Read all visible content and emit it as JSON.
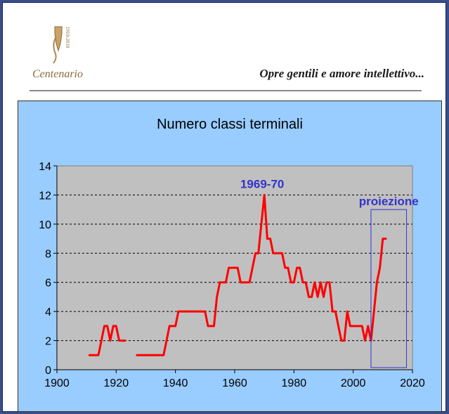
{
  "header": {
    "logo_text": "Centenario",
    "logo_small_text": "1910-2010",
    "motto": "Opre gentili e amore intellettivo..."
  },
  "colors": {
    "page_border": "#3b4f86",
    "chart_bg": "#99ccff",
    "plot_bg": "#c0c0c0",
    "line": "#ff0000",
    "annotation": "#3333cc"
  },
  "chart_data": {
    "type": "line",
    "title": "Numero classi terminali",
    "xlabel": "",
    "ylabel": "",
    "xlim": [
      1900,
      2020
    ],
    "ylim": [
      0,
      14
    ],
    "xticks": [
      1900,
      1920,
      1940,
      1960,
      1980,
      2000,
      2020
    ],
    "yticks": [
      0,
      2,
      4,
      6,
      8,
      10,
      12,
      14
    ],
    "grid": "horizontal dashed",
    "legend": "none",
    "series": [
      {
        "segments": [
          [
            [
              1911,
              1
            ],
            [
              1912,
              1
            ],
            [
              1913,
              1
            ],
            [
              1914,
              1
            ],
            [
              1915,
              2
            ],
            [
              1916,
              3
            ],
            [
              1917,
              3
            ],
            [
              1918,
              2
            ],
            [
              1919,
              3
            ],
            [
              1920,
              3
            ],
            [
              1921,
              2
            ],
            [
              1922,
              2
            ],
            [
              1923,
              2
            ]
          ],
          [
            [
              1927,
              1
            ],
            [
              1928,
              1
            ],
            [
              1930,
              1
            ],
            [
              1932,
              1
            ],
            [
              1934,
              1
            ],
            [
              1936,
              1
            ],
            [
              1937,
              2
            ],
            [
              1938,
              3
            ],
            [
              1939,
              3
            ],
            [
              1940,
              3
            ],
            [
              1941,
              4
            ],
            [
              1942,
              4
            ],
            [
              1944,
              4
            ],
            [
              1946,
              4
            ],
            [
              1948,
              4
            ],
            [
              1950,
              4
            ],
            [
              1951,
              3
            ],
            [
              1952,
              3
            ],
            [
              1953,
              3
            ],
            [
              1954,
              5
            ],
            [
              1955,
              6
            ],
            [
              1956,
              6
            ],
            [
              1957,
              6
            ],
            [
              1958,
              7
            ],
            [
              1959,
              7
            ],
            [
              1960,
              7
            ],
            [
              1961,
              7
            ],
            [
              1962,
              6
            ],
            [
              1963,
              6
            ],
            [
              1964,
              6
            ],
            [
              1965,
              6
            ],
            [
              1966,
              7
            ],
            [
              1967,
              8
            ],
            [
              1968,
              8
            ],
            [
              1969,
              10
            ],
            [
              1970,
              12
            ],
            [
              1971,
              9
            ],
            [
              1972,
              9
            ],
            [
              1973,
              8
            ],
            [
              1974,
              8
            ],
            [
              1975,
              8
            ],
            [
              1976,
              8
            ],
            [
              1977,
              7
            ],
            [
              1978,
              7
            ],
            [
              1979,
              6
            ],
            [
              1980,
              6
            ],
            [
              1981,
              7
            ],
            [
              1982,
              7
            ],
            [
              1983,
              6
            ],
            [
              1984,
              6
            ],
            [
              1985,
              5
            ],
            [
              1986,
              5
            ],
            [
              1987,
              6
            ],
            [
              1988,
              5
            ],
            [
              1989,
              6
            ],
            [
              1990,
              5
            ],
            [
              1991,
              6
            ],
            [
              1992,
              6
            ],
            [
              1993,
              4
            ],
            [
              1994,
              4
            ],
            [
              1995,
              3
            ],
            [
              1996,
              2
            ],
            [
              1997,
              2
            ],
            [
              1998,
              4
            ],
            [
              1999,
              3
            ],
            [
              2000,
              3
            ],
            [
              2001,
              3
            ],
            [
              2002,
              3
            ],
            [
              2003,
              3
            ],
            [
              2004,
              2
            ],
            [
              2005,
              3
            ],
            [
              2006,
              2
            ],
            [
              2007,
              4
            ],
            [
              2008,
              6
            ],
            [
              2009,
              7
            ],
            [
              2010,
              9
            ],
            [
              2011,
              9
            ]
          ]
        ]
      }
    ],
    "annotations": [
      {
        "text": "1969-70",
        "x": 1970,
        "y": 12
      },
      {
        "text": "proiezione",
        "x_range": [
          2006,
          2018
        ],
        "y_range": [
          0,
          11
        ]
      }
    ]
  }
}
